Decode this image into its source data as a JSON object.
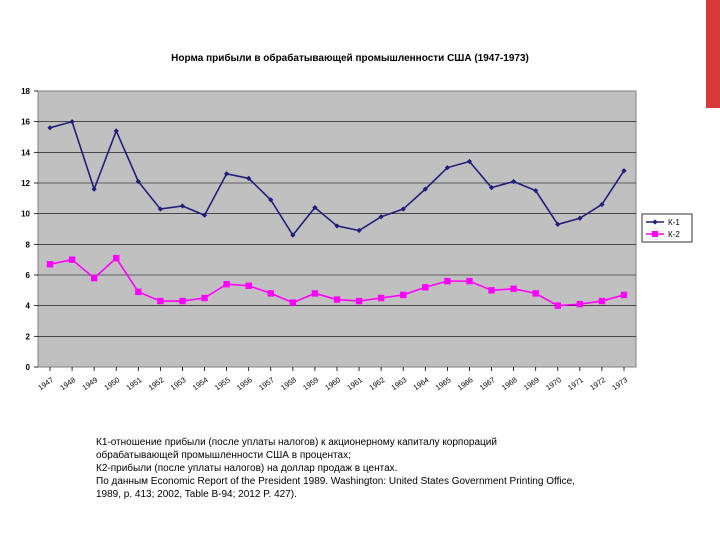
{
  "chart_data": {
    "type": "line",
    "title": "Норма прибыли в обрабатывающей промышленности США (1947-1973)",
    "xlabel": "",
    "ylabel": "",
    "ylim": [
      0,
      18
    ],
    "y_ticks": [
      "0",
      "2",
      "4",
      "6",
      "8",
      "10",
      "12",
      "14",
      "16",
      "18"
    ],
    "grid": true,
    "legend_position": "right",
    "categories": [
      "1947",
      "1948",
      "1949",
      "1950",
      "1951",
      "1952",
      "1953",
      "1954",
      "1955",
      "1956",
      "1957",
      "1958",
      "1959",
      "1960",
      "1961",
      "1962",
      "1963",
      "1964",
      "1965",
      "1966",
      "1967",
      "1968",
      "1969",
      "1970",
      "1971",
      "1972",
      "1973"
    ],
    "series": [
      {
        "name": "К-1",
        "color": "#1f1f7a",
        "marker": "diamond",
        "values": [
          15.6,
          16.0,
          11.6,
          15.4,
          12.1,
          10.3,
          10.5,
          9.9,
          12.6,
          12.3,
          10.9,
          8.6,
          10.4,
          9.2,
          8.9,
          9.8,
          10.3,
          11.6,
          13.0,
          13.4,
          11.7,
          12.1,
          11.5,
          9.3,
          9.7,
          10.6,
          12.8
        ]
      },
      {
        "name": "К-2",
        "color": "#ff00ff",
        "marker": "square",
        "values": [
          6.7,
          7.0,
          5.8,
          7.1,
          4.9,
          4.3,
          4.3,
          4.5,
          5.4,
          5.3,
          4.8,
          4.2,
          4.8,
          4.4,
          4.3,
          4.5,
          4.7,
          5.2,
          5.6,
          5.6,
          5.0,
          5.1,
          4.8,
          4.0,
          4.1,
          4.3,
          4.7
        ]
      }
    ]
  },
  "caption": {
    "line1": "К1-отношение прибыли (после уплаты налогов) к акционерному капиталу корпораций",
    "line2": "обрабатывающей промышленности США в процентах;",
    "line3": "К2-прибыли (после уплаты налогов) на доллар продаж в центах.",
    "line4": "По данным Economic Report of the President 1989. Washington: United States  Government Printing Office,",
    "line5": "1989, p. 413; 2002, Table B-94; 2012 P. 427)."
  },
  "colors": {
    "plot_background": "#c0c0c0",
    "accent_bar": "#d63a3a"
  }
}
